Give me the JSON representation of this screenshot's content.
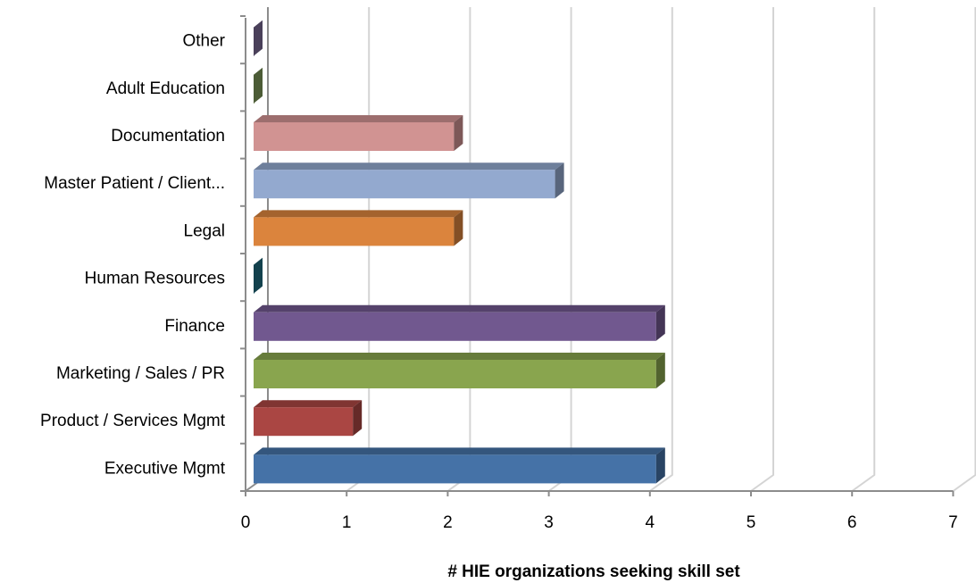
{
  "chart_data": {
    "type": "bar",
    "orientation": "horizontal",
    "style": "3d",
    "categories": [
      "Executive Mgmt",
      "Product / Services Mgmt",
      "Marketing / Sales / PR",
      "Finance",
      "Human Resources",
      "Legal",
      "Master Patient / Client...",
      "Documentation",
      "Adult Education",
      "Other"
    ],
    "values": [
      4,
      1,
      4,
      4,
      0,
      2,
      3,
      2,
      0,
      0
    ],
    "colors": [
      "#4572A7",
      "#AA4643",
      "#89A54E",
      "#71588F",
      "#1F6D80",
      "#DB843D",
      "#93A9CF",
      "#D19392",
      "#7E9A5A",
      "#7B6A96"
    ],
    "xlabel": "# HIE organizations seeking skill set",
    "ylabel": "",
    "title": "",
    "xlim": [
      0,
      7
    ],
    "xticks": [
      "0",
      "1",
      "2",
      "3",
      "4",
      "5",
      "6",
      "7"
    ],
    "grid": true,
    "legend": "none"
  }
}
